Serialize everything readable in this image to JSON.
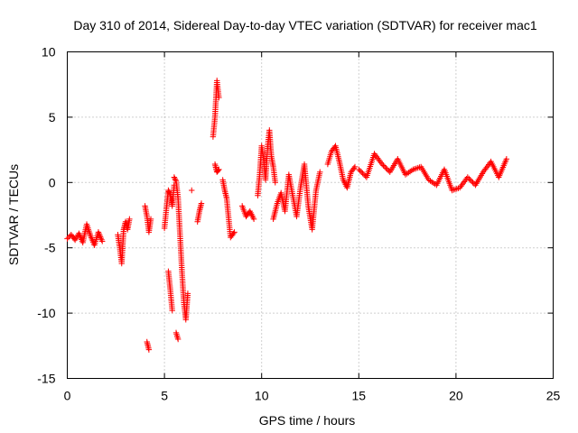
{
  "chart_data": {
    "type": "scatter",
    "title": "Day 310 of 2014, Sidereal Day-to-day VTEC variation (SDTVAR) for receiver mac1",
    "xlabel": "GPS time / hours",
    "ylabel": "SDTVAR / TECUs",
    "xlim": [
      0,
      25
    ],
    "ylim": [
      -15,
      10
    ],
    "xticks": [
      0,
      5,
      10,
      15,
      20,
      25
    ],
    "yticks": [
      -15,
      -10,
      -5,
      0,
      5,
      10
    ],
    "grid": true,
    "marker": "plus",
    "color": "#ff0000",
    "series": [
      {
        "name": "SDTVAR",
        "segments": [
          {
            "x": [
              0.0,
              0.2,
              0.4,
              0.6,
              0.8,
              1.0,
              1.2,
              1.4,
              1.6,
              1.8
            ],
            "y": [
              -4.3,
              -4.0,
              -4.4,
              -3.9,
              -4.6,
              -3.2,
              -4.1,
              -4.8,
              -3.8,
              -4.5
            ]
          },
          {
            "x": [
              2.6,
              2.7,
              2.8,
              2.9,
              3.0,
              3.1,
              3.2
            ],
            "y": [
              -4.0,
              -5.0,
              -6.2,
              -3.6,
              -3.0,
              -3.6,
              -2.8
            ]
          },
          {
            "x": [
              4.0,
              4.1,
              4.2,
              4.3
            ],
            "y": [
              -1.8,
              -2.6,
              -3.8,
              -2.8
            ]
          },
          {
            "x": [
              4.1,
              4.2
            ],
            "y": [
              -12.2,
              -12.8
            ]
          },
          {
            "x": [
              5.0,
              5.1,
              5.2,
              5.3,
              5.4,
              5.5
            ],
            "y": [
              -3.5,
              -2.0,
              -0.6,
              -0.9,
              -1.8,
              -0.2
            ]
          },
          {
            "x": [
              5.2,
              5.3,
              5.4
            ],
            "y": [
              -6.8,
              -8.2,
              -9.8
            ]
          },
          {
            "x": [
              5.5,
              5.6,
              5.7,
              5.8,
              5.9,
              6.0,
              6.1,
              6.2
            ],
            "y": [
              0.4,
              0.1,
              -1.2,
              -4.0,
              -6.8,
              -9.2,
              -10.5,
              -8.5
            ]
          },
          {
            "x": [
              5.6,
              5.7
            ],
            "y": [
              -11.5,
              -12.0
            ]
          },
          {
            "x": [
              6.4
            ],
            "y": [
              -0.6
            ]
          },
          {
            "x": [
              6.7,
              6.8,
              6.9
            ],
            "y": [
              -3.0,
              -2.2,
              -1.6
            ]
          },
          {
            "x": [
              7.5,
              7.6,
              7.7,
              7.8
            ],
            "y": [
              3.5,
              5.0,
              7.8,
              6.5
            ]
          },
          {
            "x": [
              7.6,
              7.7,
              7.8
            ],
            "y": [
              1.4,
              0.8,
              1.0
            ]
          },
          {
            "x": [
              8.0,
              8.1,
              8.2,
              8.4,
              8.6
            ],
            "y": [
              0.2,
              -0.6,
              -1.2,
              -4.2,
              -3.8
            ]
          },
          {
            "x": [
              9.0,
              9.2,
              9.4,
              9.6
            ],
            "y": [
              -1.8,
              -2.6,
              -2.2,
              -2.8
            ]
          },
          {
            "x": [
              9.8,
              9.9,
              10.0,
              10.1,
              10.2,
              10.3,
              10.4,
              10.5,
              10.6,
              10.7
            ],
            "y": [
              -1.0,
              0.6,
              2.8,
              1.8,
              0.2,
              2.6,
              4.0,
              2.0,
              1.2,
              0.0
            ]
          },
          {
            "x": [
              10.6,
              10.8,
              11.0,
              11.2,
              11.4,
              11.6,
              11.8,
              12.0,
              12.2,
              12.4,
              12.6,
              12.8,
              13.0
            ],
            "y": [
              -2.8,
              -1.6,
              -0.8,
              -2.2,
              0.6,
              -1.0,
              -2.6,
              -0.4,
              1.4,
              -1.8,
              -3.6,
              -0.6,
              0.8
            ]
          },
          {
            "x": [
              13.4,
              13.6,
              13.8,
              14.0,
              14.2,
              14.4,
              14.6,
              14.8
            ],
            "y": [
              1.4,
              2.4,
              2.8,
              1.6,
              0.2,
              -0.4,
              0.8,
              1.2
            ]
          },
          {
            "x": [
              15.0,
              15.4,
              15.8,
              16.2,
              16.6,
              17.0,
              17.4,
              17.8,
              18.2,
              18.6,
              19.0,
              19.4,
              19.8,
              20.2,
              20.6,
              21.0,
              21.4,
              21.8,
              22.2,
              22.6
            ],
            "y": [
              1.0,
              0.4,
              2.2,
              1.4,
              0.8,
              1.8,
              0.6,
              1.0,
              1.2,
              0.2,
              -0.2,
              1.0,
              -0.6,
              -0.4,
              0.4,
              -0.2,
              0.8,
              1.6,
              0.4,
              1.8
            ]
          }
        ]
      }
    ]
  }
}
